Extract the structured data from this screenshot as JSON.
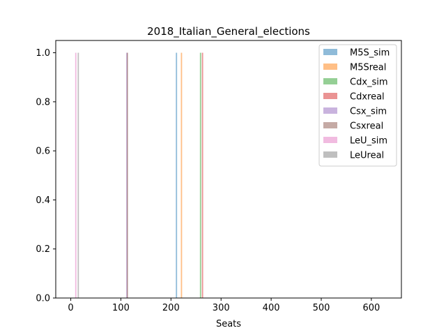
{
  "chart_data": {
    "type": "bar",
    "title": "2018_Italian_General_elections",
    "xlabel": "Seats",
    "ylabel": "",
    "xlim": [
      -30,
      660
    ],
    "ylim": [
      0,
      1.05
    ],
    "xticks": [
      0,
      100,
      200,
      300,
      400,
      500,
      600
    ],
    "yticks": [
      0.0,
      0.2,
      0.4,
      0.6,
      0.8,
      1.0
    ],
    "xtick_labels": [
      "0",
      "100",
      "200",
      "300",
      "400",
      "500",
      "600"
    ],
    "ytick_labels": [
      "0.0",
      "0.2",
      "0.4",
      "0.6",
      "0.8",
      "1.0"
    ],
    "grid": false,
    "legend_position": "top-right",
    "series": [
      {
        "name": "M5S_sim",
        "x": 211,
        "value": 1.0,
        "color": "#1f77b4"
      },
      {
        "name": "M5Sreal",
        "x": 221,
        "value": 1.0,
        "color": "#ff7f0e"
      },
      {
        "name": "Cdx_sim",
        "x": 259,
        "value": 1.0,
        "color": "#2ca02c"
      },
      {
        "name": "Cdxreal",
        "x": 263,
        "value": 1.0,
        "color": "#d62728"
      },
      {
        "name": "Csx_sim",
        "x": 112,
        "value": 1.0,
        "color": "#9467bd"
      },
      {
        "name": "Csxreal",
        "x": 113,
        "value": 1.0,
        "color": "#8c564b"
      },
      {
        "name": "LeU_sim",
        "x": 10,
        "value": 1.0,
        "color": "#e377c2"
      },
      {
        "name": "LeUreal",
        "x": 15,
        "value": 1.0,
        "color": "#7f7f7f"
      }
    ]
  }
}
